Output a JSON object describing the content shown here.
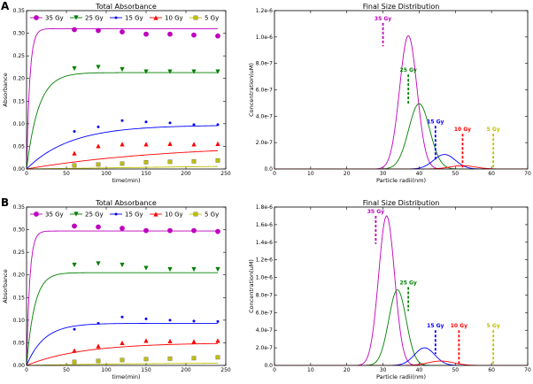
{
  "panel_labels": [
    "A",
    "B"
  ],
  "colors": {
    "35 Gy": "#bf00bf",
    "25 Gy": "#008000",
    "15 Gy": "#0000ff",
    "10 Gy": "#ff0000",
    "5 Gy": "#bfbf00"
  },
  "chart_data": [
    {
      "id": "A-left",
      "type": "line",
      "title": "Total Absorbance",
      "xlabel": "time(min)",
      "ylabel": "Absorbance",
      "xlim": [
        0,
        250
      ],
      "ylim": [
        0,
        0.35
      ],
      "xticks": [
        0,
        50,
        100,
        150,
        200,
        250
      ],
      "yticks": [
        0.0,
        0.05,
        0.1,
        0.15,
        0.2,
        0.25,
        0.3,
        0.35
      ],
      "ytick_labels": [
        "0.00",
        "0.05",
        "0.10",
        "0.15",
        "0.20",
        "0.25",
        "0.30",
        "0.35"
      ],
      "legend": [
        "35 Gy",
        "25 Gy",
        "15 Gy",
        "10 Gy",
        "5 Gy"
      ],
      "series": [
        {
          "name": "35 Gy",
          "marker": "circle",
          "x": [
            60,
            90,
            120,
            150,
            180,
            210,
            240
          ],
          "y": [
            0.308,
            0.306,
            0.303,
            0.298,
            0.298,
            0.296,
            0.294
          ],
          "fit": {
            "plateau": 0.31,
            "tau": 4
          }
        },
        {
          "name": "25 Gy",
          "marker": "triangle-down",
          "x": [
            60,
            90,
            120,
            150,
            180,
            210,
            240
          ],
          "y": [
            0.222,
            0.225,
            0.22,
            0.215,
            0.215,
            0.215,
            0.215
          ],
          "fit": {
            "plateau": 0.213,
            "tau": 15
          }
        },
        {
          "name": "15 Gy",
          "marker": "dot",
          "x": [
            60,
            90,
            120,
            150,
            180,
            210,
            240
          ],
          "y": [
            0.083,
            0.093,
            0.107,
            0.104,
            0.102,
            0.098,
            0.098
          ],
          "fit": {
            "plateau": 0.097,
            "tau": 55
          }
        },
        {
          "name": "10 Gy",
          "marker": "triangle-up",
          "x": [
            60,
            90,
            120,
            150,
            180,
            210,
            240
          ],
          "y": [
            0.035,
            0.051,
            0.055,
            0.055,
            0.056,
            0.055,
            0.056
          ],
          "fit": {
            "plateau": 0.055,
            "tau": 180
          }
        },
        {
          "name": "5 Gy",
          "marker": "square",
          "x": [
            60,
            90,
            120,
            150,
            180,
            210,
            240
          ],
          "y": [
            0.008,
            0.01,
            0.012,
            0.015,
            0.016,
            0.017,
            0.019
          ],
          "fit": {
            "plateau": 0.05,
            "tau": 2000
          }
        }
      ]
    },
    {
      "id": "A-right",
      "type": "line",
      "title": "Final Size Distribution",
      "xlabel": "Particle radii(nm)",
      "ylabel": "Concentration(uM)",
      "xlim": [
        0,
        70
      ],
      "ylim": [
        0,
        1.2e-06
      ],
      "xticks": [
        0,
        10,
        20,
        30,
        40,
        50,
        60,
        70
      ],
      "yticks": [
        0,
        2e-07,
        4e-07,
        6e-07,
        8e-07,
        1e-06,
        1.2e-06
      ],
      "ytick_labels": [
        "0.0",
        "2.0e-7",
        "4.0e-7",
        "6.0e-7",
        "8.0e-7",
        "1.0e-6",
        "1.2e-6"
      ],
      "series": [
        {
          "name": "35 Gy",
          "peak_x": 37,
          "peak_y": 1.01e-06,
          "sigma": 2.4
        },
        {
          "name": "25 Gy",
          "peak_x": 40,
          "peak_y": 4.95e-07,
          "sigma": 2.9
        },
        {
          "name": "15 Gy",
          "peak_x": 47,
          "peak_y": 1.1e-07,
          "sigma": 3.0
        },
        {
          "name": "10 Gy",
          "peak_x": 52,
          "peak_y": 2.5e-08,
          "sigma": 3.5
        }
      ],
      "annotations": [
        {
          "text": "35 Gy",
          "series": "35 Gy",
          "x": 30,
          "y_top": 1.12e-06,
          "y_bottom": 9.3e-07
        },
        {
          "text": "25 Gy",
          "series": "25 Gy",
          "x": 37,
          "y_top": 7.3e-07,
          "y_bottom": 4.9e-07
        },
        {
          "text": "15 Gy",
          "series": "15 Gy",
          "x": 44.5,
          "y_top": 3.4e-07,
          "y_bottom": 6e-08
        },
        {
          "text": "10 Gy",
          "series": "10 Gy",
          "x": 52,
          "y_top": 2.8e-07,
          "y_bottom": 0
        },
        {
          "text": "5 Gy",
          "series": "5 Gy",
          "x": 60.5,
          "y_top": 2.8e-07,
          "y_bottom": 0
        }
      ]
    },
    {
      "id": "B-left",
      "type": "line",
      "title": "Total Absorbance",
      "xlabel": "time(min)",
      "ylabel": "Absorbance",
      "xlim": [
        0,
        250
      ],
      "ylim": [
        0,
        0.35
      ],
      "xticks": [
        0,
        50,
        100,
        150,
        200,
        250
      ],
      "yticks": [
        0.0,
        0.05,
        0.1,
        0.15,
        0.2,
        0.25,
        0.3,
        0.35
      ],
      "ytick_labels": [
        "0.00",
        "0.05",
        "0.10",
        "0.15",
        "0.20",
        "0.25",
        "0.30",
        "0.35"
      ],
      "legend": [
        "35 Gy",
        "25 Gy",
        "15 Gy",
        "10 Gy",
        "5 Gy"
      ],
      "series": [
        {
          "name": "35 Gy",
          "marker": "circle",
          "x": [
            60,
            90,
            120,
            150,
            180,
            210,
            240
          ],
          "y": [
            0.308,
            0.306,
            0.303,
            0.298,
            0.298,
            0.298,
            0.296
          ],
          "fit": {
            "plateau": 0.297,
            "tau": 4
          }
        },
        {
          "name": "25 Gy",
          "marker": "triangle-down",
          "x": [
            60,
            90,
            120,
            150,
            180,
            210,
            240
          ],
          "y": [
            0.222,
            0.225,
            0.222,
            0.215,
            0.212,
            0.212,
            0.212
          ],
          "fit": {
            "plateau": 0.205,
            "tau": 10
          }
        },
        {
          "name": "15 Gy",
          "marker": "dot",
          "x": [
            60,
            90,
            120,
            150,
            180,
            210,
            240
          ],
          "y": [
            0.08,
            0.093,
            0.107,
            0.103,
            0.1,
            0.098,
            0.097
          ],
          "fit": {
            "plateau": 0.093,
            "tau": 22
          }
        },
        {
          "name": "10 Gy",
          "marker": "triangle-up",
          "x": [
            60,
            90,
            120,
            150,
            180,
            210,
            240
          ],
          "y": [
            0.033,
            0.043,
            0.05,
            0.055,
            0.054,
            0.053,
            0.055
          ],
          "fit": {
            "plateau": 0.05,
            "tau": 70
          }
        },
        {
          "name": "5 Gy",
          "marker": "square",
          "x": [
            60,
            90,
            120,
            150,
            180,
            210,
            240
          ],
          "y": [
            0.008,
            0.01,
            0.012,
            0.014,
            0.015,
            0.016,
            0.018
          ],
          "fit": {
            "plateau": 0.006,
            "tau": 150
          }
        }
      ]
    },
    {
      "id": "B-right",
      "type": "line",
      "title": "Final Size Distribution",
      "xlabel": "Particle radii(nm)",
      "ylabel": "Concentration(uM)",
      "xlim": [
        0,
        70
      ],
      "ylim": [
        0,
        1.8e-06
      ],
      "xticks": [
        0,
        10,
        20,
        30,
        40,
        50,
        60,
        70
      ],
      "yticks": [
        0,
        2e-07,
        4e-07,
        6e-07,
        8e-07,
        1e-06,
        1.2e-06,
        1.4e-06,
        1.6e-06,
        1.8e-06
      ],
      "ytick_labels": [
        "0.0",
        "2.0e-7",
        "4.0e-7",
        "6.0e-7",
        "8.0e-7",
        "1.0e-6",
        "1.2e-6",
        "1.4e-6",
        "1.6e-6",
        "1.8e-6"
      ],
      "series": [
        {
          "name": "35 Gy",
          "peak_x": 31,
          "peak_y": 1.7e-06,
          "sigma": 2.2
        },
        {
          "name": "25 Gy",
          "peak_x": 34,
          "peak_y": 8.6e-07,
          "sigma": 2.4
        },
        {
          "name": "15 Gy",
          "peak_x": 41.5,
          "peak_y": 2e-07,
          "sigma": 2.8
        },
        {
          "name": "10 Gy",
          "peak_x": 46,
          "peak_y": 5e-08,
          "sigma": 3.5
        }
      ],
      "annotations": [
        {
          "text": "35 Gy",
          "series": "35 Gy",
          "x": 28,
          "y_top": 1.72e-06,
          "y_bottom": 1.38e-06
        },
        {
          "text": "25 Gy",
          "series": "25 Gy",
          "x": 37,
          "y_top": 9.1e-07,
          "y_bottom": 6.2e-07
        },
        {
          "text": "15 Gy",
          "series": "15 Gy",
          "x": 44.5,
          "y_top": 4.2e-07,
          "y_bottom": 1.3e-07
        },
        {
          "text": "10 Gy",
          "series": "10 Gy",
          "x": 51,
          "y_top": 4.2e-07,
          "y_bottom": 0
        },
        {
          "text": "5 Gy",
          "series": "5 Gy",
          "x": 60.5,
          "y_top": 4.2e-07,
          "y_bottom": 0
        }
      ]
    }
  ]
}
